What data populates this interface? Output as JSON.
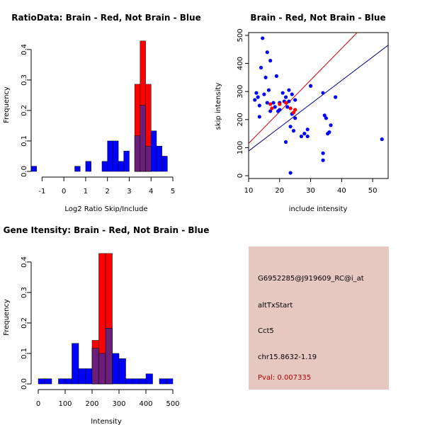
{
  "colors": {
    "red": "#ff0000",
    "blue": "#0000ff",
    "overlap": "#6b1f7b",
    "panel_bg": "#e6c8c0",
    "pval": "#b00000",
    "red_line": "#cc0000",
    "blue_line": "#00008b"
  },
  "chart_data": [
    {
      "type": "histogram",
      "title": "RatioData: Brain - Red, Not Brain - Blue",
      "xlabel": "Log2 Ratio Skip/Include",
      "ylabel": "Frequency",
      "xlim": [
        -1.5,
        5
      ],
      "ylim": [
        0,
        0.43
      ],
      "xticks": [
        -1,
        0,
        1,
        2,
        3,
        4,
        5
      ],
      "xtick_labels": [
        "-1",
        "0",
        "1",
        "2",
        "3",
        "4",
        "5"
      ],
      "yticks": [
        0,
        0.1,
        0.2,
        0.3,
        0.4
      ],
      "ytick_labels": [
        "0.0",
        "0.1",
        "0.2",
        "0.3",
        "0.4"
      ],
      "series": [
        {
          "name": "Not Brain",
          "color": "blue",
          "bins": [
            [
              -1.5,
              -1.25,
              0.017
            ],
            [
              0.5,
              0.75,
              0.017
            ],
            [
              1.0,
              1.25,
              0.033
            ],
            [
              1.75,
              2.0,
              0.033
            ],
            [
              2.0,
              2.25,
              0.1
            ],
            [
              2.25,
              2.5,
              0.1
            ],
            [
              2.5,
              2.75,
              0.033
            ],
            [
              2.75,
              3.0,
              0.067
            ],
            [
              3.25,
              3.5,
              0.117
            ],
            [
              3.5,
              3.75,
              0.217
            ],
            [
              3.75,
              4.0,
              0.083
            ],
            [
              4.0,
              4.25,
              0.133
            ],
            [
              4.25,
              4.5,
              0.083
            ],
            [
              4.5,
              4.75,
              0.05
            ]
          ]
        },
        {
          "name": "Brain",
          "color": "red",
          "bins": [
            [
              3.25,
              3.5,
              0.286
            ],
            [
              3.5,
              3.75,
              0.428
            ],
            [
              3.75,
              4.0,
              0.286
            ]
          ]
        }
      ]
    },
    {
      "type": "scatter",
      "title": "Brain - Red, Not Brain - Blue",
      "xlabel": "include intensity",
      "ylabel": "skip intensity",
      "xlim": [
        10,
        55
      ],
      "ylim": [
        -10,
        510
      ],
      "xticks": [
        10,
        20,
        30,
        40,
        50
      ],
      "xtick_labels": [
        "10",
        "20",
        "30",
        "40",
        "50"
      ],
      "yticks": [
        0,
        100,
        200,
        300,
        400,
        500
      ],
      "ytick_labels": [
        "0",
        "100",
        "200",
        "300",
        "400",
        "500"
      ],
      "series": [
        {
          "name": "Not Brain",
          "color": "blue",
          "points": [
            [
              12,
              270
            ],
            [
              12.5,
              295
            ],
            [
              13,
              280
            ],
            [
              13.5,
              250
            ],
            [
              13.5,
              210
            ],
            [
              14,
              385
            ],
            [
              14.5,
              490
            ],
            [
              15,
              290
            ],
            [
              15.5,
              350
            ],
            [
              16,
              440
            ],
            [
              16,
              260
            ],
            [
              16.5,
              305
            ],
            [
              17,
              410
            ],
            [
              17,
              230
            ],
            [
              18,
              260
            ],
            [
              18.5,
              245
            ],
            [
              19,
              355
            ],
            [
              19.5,
              230
            ],
            [
              20,
              260
            ],
            [
              20,
              235
            ],
            [
              21,
              295
            ],
            [
              21.5,
              265
            ],
            [
              22,
              280
            ],
            [
              22,
              120
            ],
            [
              22.5,
              245
            ],
            [
              23,
              305
            ],
            [
              23,
              265
            ],
            [
              23.5,
              175
            ],
            [
              24,
              290
            ],
            [
              24,
              220
            ],
            [
              24.5,
              160
            ],
            [
              25,
              270
            ],
            [
              25,
              205
            ],
            [
              27,
              140
            ],
            [
              28,
              150
            ],
            [
              29,
              165
            ],
            [
              29,
              140
            ],
            [
              30,
              320
            ],
            [
              23.5,
              10
            ],
            [
              34,
              295
            ],
            [
              34.5,
              215
            ],
            [
              35,
              205
            ],
            [
              35.5,
              150
            ],
            [
              36,
              155
            ],
            [
              36.5,
              180
            ],
            [
              38,
              280
            ],
            [
              34,
              80
            ],
            [
              34,
              55
            ],
            [
              53,
              130
            ]
          ]
        },
        {
          "name": "Brain",
          "color": "red",
          "points": [
            [
              17,
              255
            ],
            [
              17.5,
              240
            ],
            [
              20,
              255
            ],
            [
              22,
              260
            ],
            [
              23.5,
              240
            ],
            [
              24.5,
              225
            ],
            [
              25,
              235
            ]
          ]
        }
      ],
      "fit_lines": [
        {
          "name": "Brain fit",
          "color": "red",
          "from": [
            10,
            115
          ],
          "to": [
            45,
            510
          ]
        },
        {
          "name": "Not Brain fit",
          "color": "blue",
          "from": [
            10,
            88
          ],
          "to": [
            55,
            465
          ]
        }
      ]
    },
    {
      "type": "histogram",
      "title": "Gene Itensity: Brain - Red, Not Brain - Blue",
      "xlabel": "Intensity",
      "ylabel": "Frequency",
      "xlim": [
        0,
        500
      ],
      "ylim": [
        0,
        0.43
      ],
      "xticks": [
        0,
        100,
        200,
        300,
        400,
        500
      ],
      "xtick_labels": [
        "0",
        "100",
        "200",
        "300",
        "400",
        "500"
      ],
      "yticks": [
        0,
        0.1,
        0.2,
        0.3,
        0.4
      ],
      "ytick_labels": [
        "0.0",
        "0.1",
        "0.2",
        "0.3",
        "0.4"
      ],
      "series": [
        {
          "name": "Not Brain",
          "color": "blue",
          "bins": [
            [
              0,
              25,
              0.017
            ],
            [
              25,
              50,
              0.017
            ],
            [
              75,
              100,
              0.017
            ],
            [
              100,
              125,
              0.017
            ],
            [
              125,
              150,
              0.133
            ],
            [
              150,
              175,
              0.05
            ],
            [
              175,
              200,
              0.05
            ],
            [
              200,
              225,
              0.117
            ],
            [
              225,
              250,
              0.1
            ],
            [
              250,
              275,
              0.183
            ],
            [
              275,
              300,
              0.1
            ],
            [
              300,
              325,
              0.083
            ],
            [
              325,
              350,
              0.017
            ],
            [
              350,
              375,
              0.017
            ],
            [
              375,
              400,
              0.017
            ],
            [
              400,
              425,
              0.033
            ],
            [
              450,
              475,
              0.017
            ],
            [
              475,
              500,
              0.017
            ]
          ]
        },
        {
          "name": "Brain",
          "color": "red",
          "bins": [
            [
              200,
              225,
              0.143
            ],
            [
              225,
              250,
              0.428
            ],
            [
              250,
              275,
              0.428
            ]
          ]
        }
      ]
    }
  ],
  "info": {
    "probe": "G6952285@J919609_RC@i_at",
    "event": "altTxStart",
    "gene": "Cct5",
    "location": "chr15.8632-1.19",
    "pval": "Pval: 0.007335"
  }
}
